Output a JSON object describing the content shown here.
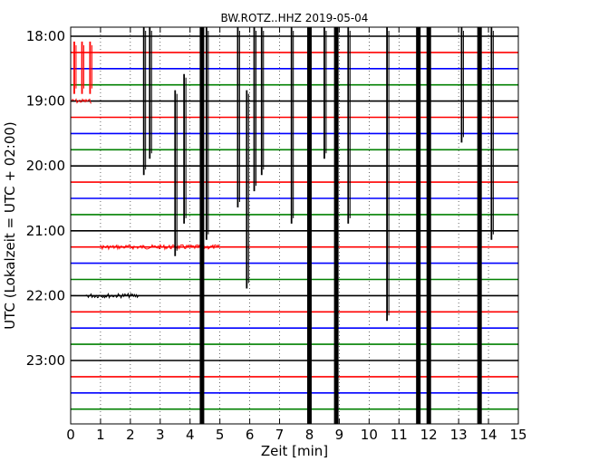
{
  "chart_data": {
    "type": "line",
    "title": "BW.ROTZ..HHZ 2019-05-04",
    "xlabel": "Zeit  [min]",
    "ylabel": "UTC (Lokalzeit = UTC + 02:00)",
    "xlim": [
      0,
      15
    ],
    "x_ticks": [
      0,
      1,
      2,
      3,
      4,
      5,
      6,
      7,
      8,
      9,
      10,
      11,
      12,
      13,
      14,
      15
    ],
    "y_tick_labels": [
      "18:00",
      "19:00",
      "20:00",
      "21:00",
      "22:00",
      "23:00"
    ],
    "grid": true,
    "row_colors": [
      "#000000",
      "#ff0000",
      "#0000ff",
      "#008000"
    ],
    "rows": [
      {
        "time": "18:00"
      },
      {
        "time": "18:15"
      },
      {
        "time": "18:30"
      },
      {
        "time": "18:45"
      },
      {
        "time": "19:00"
      },
      {
        "time": "19:15"
      },
      {
        "time": "19:30"
      },
      {
        "time": "19:45"
      },
      {
        "time": "20:00"
      },
      {
        "time": "20:15"
      },
      {
        "time": "20:30"
      },
      {
        "time": "20:45"
      },
      {
        "time": "21:00"
      },
      {
        "time": "21:15"
      },
      {
        "time": "21:30"
      },
      {
        "time": "21:45"
      },
      {
        "time": "22:00"
      },
      {
        "time": "22:15"
      },
      {
        "time": "22:30"
      },
      {
        "time": "22:45"
      },
      {
        "time": "23:00"
      },
      {
        "time": "23:15"
      },
      {
        "time": "23:30"
      },
      {
        "time": "23:45"
      }
    ],
    "events": [
      {
        "x": 0.12,
        "from_row": 1,
        "to_row": 3,
        "color": "#ff0000"
      },
      {
        "x": 0.38,
        "from_row": 1,
        "to_row": 3,
        "color": "#ff0000"
      },
      {
        "x": 0.65,
        "from_row": 1,
        "to_row": 3,
        "color": "#ff0000"
      },
      {
        "x": 2.45,
        "from_row": 0,
        "to_row": 8,
        "color": "#000000"
      },
      {
        "x": 2.65,
        "from_row": 0,
        "to_row": 7,
        "color": "#000000"
      },
      {
        "x": 3.5,
        "from_row": 4,
        "to_row": 13,
        "color": "#000000"
      },
      {
        "x": 3.8,
        "from_row": 3,
        "to_row": 11,
        "color": "#000000"
      },
      {
        "x": 4.4,
        "from_row": 0,
        "to_row": 23,
        "color": "#000000",
        "heavy": true
      },
      {
        "x": 4.55,
        "from_row": 0,
        "to_row": 12,
        "color": "#000000"
      },
      {
        "x": 5.6,
        "from_row": 0,
        "to_row": 10,
        "color": "#000000"
      },
      {
        "x": 5.9,
        "from_row": 4,
        "to_row": 15,
        "color": "#000000"
      },
      {
        "x": 6.15,
        "from_row": 0,
        "to_row": 9,
        "color": "#000000"
      },
      {
        "x": 6.4,
        "from_row": 0,
        "to_row": 8,
        "color": "#000000"
      },
      {
        "x": 7.4,
        "from_row": 0,
        "to_row": 11,
        "color": "#000000"
      },
      {
        "x": 8.0,
        "from_row": 0,
        "to_row": 23,
        "color": "#000000",
        "heavy": true
      },
      {
        "x": 8.5,
        "from_row": 0,
        "to_row": 7,
        "color": "#000000"
      },
      {
        "x": 8.9,
        "from_row": 0,
        "to_row": 23,
        "color": "#000000",
        "heavy": true
      },
      {
        "x": 9.3,
        "from_row": 0,
        "to_row": 11,
        "color": "#000000"
      },
      {
        "x": 10.6,
        "from_row": 0,
        "to_row": 17,
        "color": "#000000"
      },
      {
        "x": 11.65,
        "from_row": 0,
        "to_row": 23,
        "color": "#000000",
        "heavy": true
      },
      {
        "x": 12.0,
        "from_row": 0,
        "to_row": 23,
        "color": "#000000",
        "heavy": true
      },
      {
        "x": 13.1,
        "from_row": 0,
        "to_row": 6,
        "color": "#000000"
      },
      {
        "x": 13.7,
        "from_row": 0,
        "to_row": 23,
        "color": "#000000",
        "heavy": true
      },
      {
        "x": 14.1,
        "from_row": 0,
        "to_row": 12,
        "color": "#000000"
      }
    ],
    "noise_bursts": [
      {
        "row": 4,
        "x_from": 0.0,
        "x_to": 0.7,
        "color": "#ff0000"
      },
      {
        "row": 13,
        "x_from": 1.0,
        "x_to": 5.0,
        "color": "#ff0000"
      },
      {
        "row": 16,
        "x_from": 0.5,
        "x_to": 2.3,
        "color": "#000000"
      }
    ]
  }
}
